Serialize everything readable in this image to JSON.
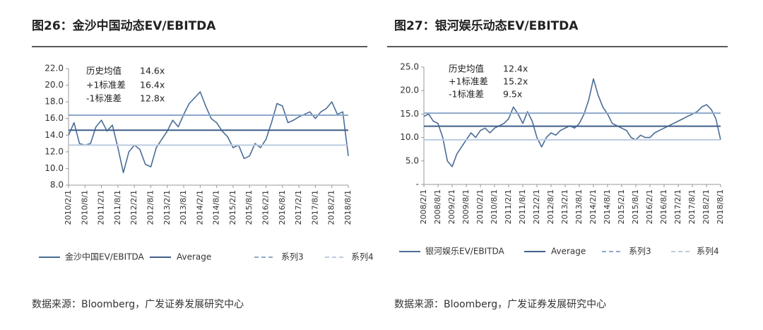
{
  "chart_data": [
    {
      "type": "line",
      "title": "图26：金沙中国动态EV/EBITDA",
      "source": "数据来源：Bloomberg，广发证券发展研究中心",
      "categories": [
        "2010/2/1",
        null,
        null,
        "2010/8/1",
        null,
        null,
        "2011/2/1",
        null,
        null,
        "2011/8/1",
        null,
        null,
        "2012/2/1",
        null,
        null,
        "2012/8/1",
        null,
        null,
        "2013/2/1",
        null,
        null,
        "2013/8/1",
        null,
        null,
        "2014/2/1",
        null,
        null,
        "2014/8/1",
        null,
        null,
        "2015/2/1",
        null,
        null,
        "2015/8/1",
        null,
        null,
        "2016/2/1",
        null,
        null,
        "2016/8/1",
        null,
        null,
        "2017/2/1",
        null,
        null,
        "2017/8/1",
        null,
        null,
        "2018/2/1",
        null,
        null,
        "2018/8/1"
      ],
      "series": [
        {
          "name": "金沙中国EV/EBITDA",
          "color": "#4a6d96",
          "style": "solid",
          "values": [
            14.0,
            15.5,
            13.0,
            12.8,
            13.0,
            15.0,
            15.8,
            14.5,
            15.2,
            12.5,
            9.5,
            12.0,
            12.8,
            12.3,
            10.5,
            10.2,
            12.5,
            13.5,
            14.5,
            15.8,
            15.0,
            16.5,
            17.8,
            18.5,
            19.2,
            17.5,
            16.0,
            15.5,
            14.5,
            13.8,
            12.5,
            12.8,
            11.2,
            11.5,
            13.0,
            12.5,
            13.5,
            15.5,
            17.8,
            17.5,
            15.5,
            15.8,
            16.2,
            16.5,
            16.8,
            16.0,
            16.8,
            17.2,
            18.0,
            16.5,
            16.8,
            11.5
          ]
        },
        {
          "name": "Average",
          "color": "#3f5f88",
          "style": "solid",
          "value": 14.6,
          "value_label": "14.6x",
          "annotation": "历史均值"
        },
        {
          "name": "系列3",
          "color": "#8fa7c9",
          "style": "dashed",
          "value": 16.4,
          "value_label": "16.4x",
          "annotation": "+1标准差"
        },
        {
          "name": "系列4",
          "color": "#bccbe0",
          "style": "dashed",
          "value": 12.8,
          "value_label": "12.8x",
          "annotation": "-1标准差"
        }
      ],
      "ylim": [
        8,
        22
      ],
      "yticks": [
        {
          "value": 8,
          "label": "8.0"
        },
        {
          "value": 10,
          "label": "10.0"
        },
        {
          "value": 12,
          "label": "12.0"
        },
        {
          "value": 14,
          "label": "14.0"
        },
        {
          "value": 16,
          "label": "16.0"
        },
        {
          "value": 18,
          "label": "18.0"
        },
        {
          "value": 20,
          "label": "20.0"
        },
        {
          "value": 22,
          "label": "22.0"
        }
      ]
    },
    {
      "type": "line",
      "title": "图27：银河娱乐动态EV/EBITDA",
      "source": "数据来源：Bloomberg，广发证券发展研究中心",
      "categories": [
        "2008/2/1",
        null,
        null,
        "2008/8/1",
        null,
        null,
        "2009/2/1",
        null,
        null,
        "2009/8/1",
        null,
        null,
        "2010/2/1",
        null,
        null,
        "2010/8/1",
        null,
        null,
        "2011/2/1",
        null,
        null,
        "2011/8/1",
        null,
        null,
        "2012/2/1",
        null,
        null,
        "2012/8/1",
        null,
        null,
        "2013/2/1",
        null,
        null,
        "2013/8/1",
        null,
        null,
        "2014/2/1",
        null,
        null,
        "2014/8/1",
        null,
        null,
        "2015/2/1",
        null,
        null,
        "2015/8/1",
        null,
        null,
        "2016/2/1",
        null,
        null,
        "2016/8/1",
        null,
        null,
        "2017/2/1",
        null,
        null,
        "2017/8/1",
        null,
        null,
        "2018/2/1",
        null,
        null,
        "2018/8/1"
      ],
      "series": [
        {
          "name": "银河娱乐EV/EBITDA",
          "color": "#4a6d96",
          "style": "solid",
          "values": [
            14.5,
            15.0,
            13.5,
            13.0,
            10.0,
            5.0,
            3.8,
            6.5,
            8.0,
            9.5,
            11.0,
            10.0,
            11.5,
            12.0,
            11.0,
            12.0,
            12.5,
            13.0,
            14.0,
            16.5,
            15.0,
            13.0,
            15.5,
            13.5,
            10.0,
            8.0,
            10.0,
            11.0,
            10.5,
            11.5,
            12.0,
            12.5,
            12.0,
            13.0,
            15.0,
            18.0,
            22.5,
            19.0,
            16.5,
            15.0,
            13.0,
            12.5,
            12.0,
            11.5,
            10.0,
            9.5,
            10.5,
            10.0,
            10.0,
            11.0,
            11.5,
            12.0,
            12.5,
            13.0,
            13.5,
            14.0,
            14.5,
            15.0,
            15.5,
            16.5,
            17.0,
            16.0,
            14.0,
            9.5
          ]
        },
        {
          "name": "Average",
          "color": "#3f5f88",
          "style": "solid",
          "value": 12.4,
          "value_label": "12.4x",
          "annotation": "历史均值"
        },
        {
          "name": "系列3",
          "color": "#8fa7c9",
          "style": "dashed",
          "value": 15.2,
          "value_label": "15.2x",
          "annotation": "+1标准差"
        },
        {
          "name": "系列4",
          "color": "#bccbe0",
          "style": "dashed",
          "value": 9.5,
          "value_label": "9.5x",
          "annotation": "-1标准差"
        }
      ],
      "ylim": [
        0,
        25
      ],
      "yticks": [
        {
          "value": 0,
          "label": "-"
        },
        {
          "value": 5,
          "label": "5.0"
        },
        {
          "value": 10,
          "label": "10.0"
        },
        {
          "value": 15,
          "label": "15.0"
        },
        {
          "value": 20,
          "label": "20.0"
        },
        {
          "value": 25,
          "label": "25.0"
        }
      ]
    }
  ]
}
